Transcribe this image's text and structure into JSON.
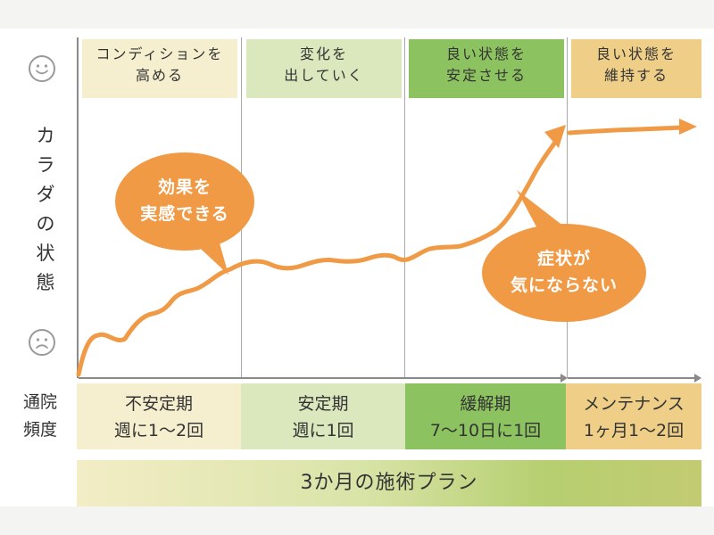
{
  "colors": {
    "curve": "#f19a46",
    "phase1": "#f6efcf",
    "phase2": "#dbe8be",
    "phase3": "#8cc360",
    "phase4": "#efcf88",
    "axis": "#8a8a8a"
  },
  "icons": {
    "good": "smiley-face-icon",
    "bad": "sad-face-icon"
  },
  "y_axis_label_chars": [
    "カ",
    "ラ",
    "ダ",
    "の",
    "状",
    "態"
  ],
  "phases": [
    {
      "lines": [
        "コンディションを",
        "高める"
      ]
    },
    {
      "lines": [
        "変化を",
        "出していく"
      ]
    },
    {
      "lines": [
        "良い状態を",
        "安定させる"
      ]
    },
    {
      "lines": [
        "良い状態を",
        "維持する"
      ]
    }
  ],
  "bubbles": [
    {
      "lines": [
        "効果を",
        "実感できる"
      ]
    },
    {
      "lines": [
        "症状が",
        "気にならない"
      ]
    }
  ],
  "frequency_label": [
    "通院",
    "頻度"
  ],
  "frequency": [
    {
      "lines": [
        "不安定期",
        "週に1〜2回"
      ]
    },
    {
      "lines": [
        "安定期",
        "週に1回"
      ]
    },
    {
      "lines": [
        "緩解期",
        "7〜10日に1回"
      ]
    },
    {
      "lines": [
        "メンテナンス",
        "1ヶ月1〜2回"
      ]
    }
  ],
  "plan_label": "3か月の施術プラン"
}
